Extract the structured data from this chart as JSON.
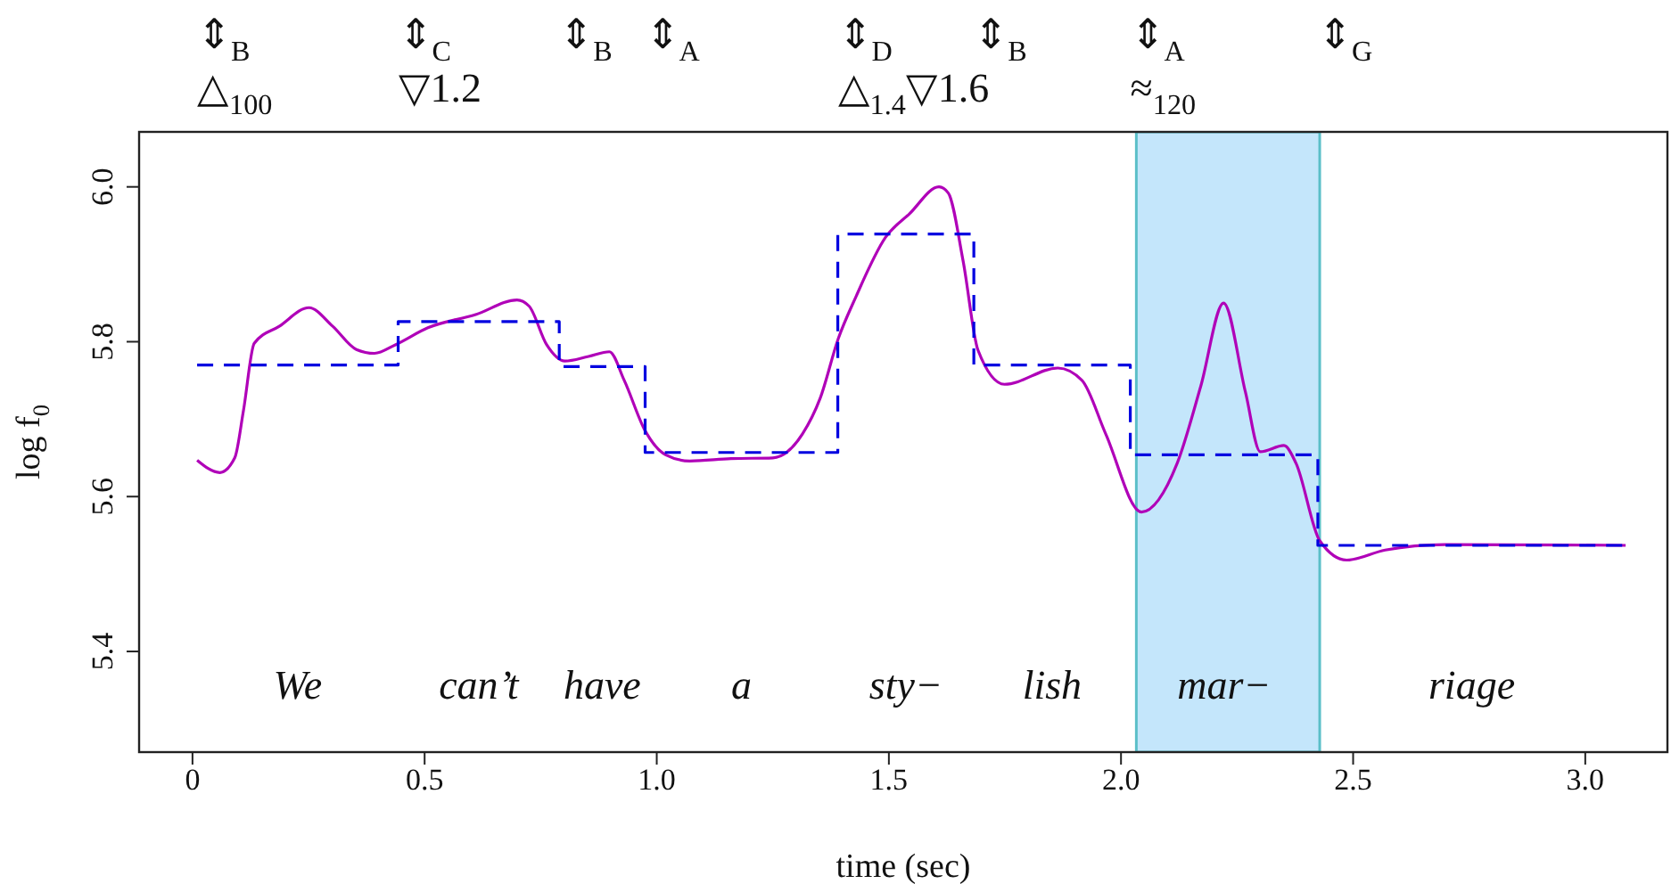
{
  "chart_data": {
    "type": "line",
    "xlabel": "time (sec)",
    "ylabel": "log f$_{0}$",
    "xlim": [
      -0.115,
      3.177
    ],
    "ylim": [
      5.27,
      6.071
    ],
    "xticks": [
      0,
      0.5,
      {
        "value": 1,
        "label": "1.0"
      },
      1.5,
      {
        "value": 2,
        "label": "2.0"
      },
      2.5,
      {
        "value": 3,
        "label": "3.0"
      }
    ],
    "yticks": [
      5.4,
      5.6,
      5.8,
      {
        "value": 6,
        "label": "6.0"
      }
    ],
    "grid": false,
    "marker": "none",
    "series": [
      {
        "type": "line",
        "color": "#b000b8",
        "line_style": "solid",
        "x": [
          0.01,
          0.059,
          0.091,
          0.11,
          0.133,
          0.187,
          0.251,
          0.302,
          0.353,
          0.392,
          0.437,
          0.507,
          0.61,
          0.699,
          0.725,
          0.763,
          0.802,
          0.853,
          0.898,
          0.93,
          0.975,
          1.019,
          1.071,
          1.16,
          1.25,
          1.314,
          1.352,
          1.391,
          1.429,
          1.493,
          1.544,
          1.608,
          1.628,
          1.66,
          1.692,
          1.749,
          1.864,
          1.916,
          1.967,
          2.044,
          2.121,
          2.172,
          2.221,
          2.268,
          2.3,
          2.351,
          2.377,
          2.428,
          2.486,
          2.569,
          2.697,
          3.087
        ],
        "values": [
          5.647,
          5.631,
          5.65,
          5.712,
          5.798,
          5.82,
          5.844,
          5.82,
          5.79,
          5.785,
          5.796,
          5.818,
          5.835,
          5.854,
          5.846,
          5.796,
          5.775,
          5.781,
          5.787,
          5.75,
          5.685,
          5.654,
          5.646,
          5.649,
          5.65,
          5.681,
          5.727,
          5.804,
          5.858,
          5.935,
          5.965,
          6.0,
          5.992,
          5.904,
          5.789,
          5.745,
          5.766,
          5.75,
          5.681,
          5.58,
          5.643,
          5.743,
          5.85,
          5.735,
          5.658,
          5.666,
          5.643,
          5.543,
          5.518,
          5.531,
          5.538,
          5.537
        ]
      },
      {
        "type": "step",
        "color": "#0000e0",
        "line_style": "dashed",
        "x": [
          0.01,
          0.443,
          0.79,
          0.975,
          1.39,
          1.683,
          2.02,
          2.424,
          3.087
        ],
        "values": [
          5.77,
          5.826,
          5.768,
          5.657,
          5.939,
          5.77,
          5.654,
          5.537,
          5.537
        ]
      }
    ],
    "bands": [
      {
        "axis": "x",
        "from": 2.033,
        "to": 2.428,
        "color": "#c4e6fb"
      }
    ],
    "annotations": [
      "⇕$_{B}$\n△$_{100}$",
      "⇕$_{C}$\n▽1.2",
      "⇕$_{B}$",
      "⇕$_{A}$",
      "⇕$_{D}$\n△$_{1.4}$▽1.6",
      "⇕$_{B}$",
      "⇕$_{A}$\n≈$_{120}$",
      "⇕$_{G}$",
      "We",
      "can’t",
      "have",
      "a",
      "sty−",
      "lish",
      "mar−",
      "riage"
    ]
  }
}
